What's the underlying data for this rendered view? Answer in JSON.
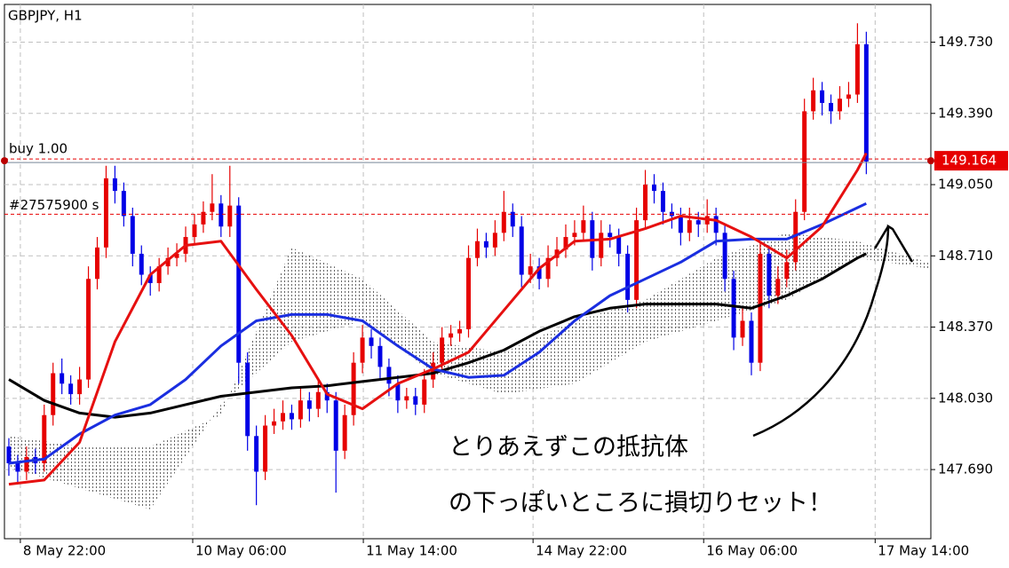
{
  "chart_data": {
    "type": "candlestick",
    "title": "GBPJPY, H1",
    "bull_color": "#e60000",
    "bear_color": "#0000e6",
    "grid": true,
    "xlim": [
      -0.5,
      104.3
    ],
    "ylim": [
      147.36,
      149.91
    ],
    "yticks": [
      {
        "value": 149.73,
        "label": "149.730"
      },
      {
        "value": 149.39,
        "label": "149.390"
      },
      {
        "value": 149.05,
        "label": "149.050"
      },
      {
        "value": 148.71,
        "label": "148.710"
      },
      {
        "value": 148.37,
        "label": "148.370"
      },
      {
        "value": 148.03,
        "label": "148.030"
      },
      {
        "value": 147.69,
        "label": "147.690"
      }
    ],
    "xticks": [
      {
        "value": 1.3,
        "label": "8 May 22:00"
      },
      {
        "value": 20.8,
        "label": "10 May 06:00"
      },
      {
        "value": 40.1,
        "label": "11 May 14:00"
      },
      {
        "value": 59.3,
        "label": "14 May 22:00"
      },
      {
        "value": 78.6,
        "label": "16 May 06:00"
      },
      {
        "value": 98,
        "label": "17 May 14:00"
      }
    ],
    "candles": [
      [
        147.8,
        147.84,
        147.66,
        147.72
      ],
      [
        147.72,
        147.76,
        147.62,
        147.68
      ],
      [
        147.68,
        147.8,
        147.64,
        147.75
      ],
      [
        147.75,
        147.79,
        147.67,
        147.72
      ],
      [
        147.72,
        148.0,
        147.68,
        147.95
      ],
      [
        147.95,
        148.2,
        147.9,
        148.15
      ],
      [
        148.15,
        148.22,
        148.05,
        148.1
      ],
      [
        148.1,
        148.14,
        148.0,
        148.05
      ],
      [
        148.05,
        148.18,
        148.0,
        148.12
      ],
      [
        148.12,
        148.66,
        148.08,
        148.6
      ],
      [
        148.6,
        148.8,
        148.55,
        148.75
      ],
      [
        148.75,
        149.14,
        148.7,
        149.08
      ],
      [
        149.08,
        149.14,
        148.96,
        149.02
      ],
      [
        149.02,
        149.06,
        148.85,
        148.9
      ],
      [
        148.9,
        148.94,
        148.66,
        148.72
      ],
      [
        148.72,
        148.76,
        148.57,
        148.62
      ],
      [
        148.62,
        148.66,
        148.52,
        148.58
      ],
      [
        148.58,
        148.7,
        148.54,
        148.66
      ],
      [
        148.66,
        148.75,
        148.62,
        148.7
      ],
      [
        148.7,
        148.77,
        148.66,
        148.72
      ],
      [
        148.72,
        148.85,
        148.68,
        148.8
      ],
      [
        148.8,
        148.91,
        148.76,
        148.86
      ],
      [
        148.86,
        148.97,
        148.82,
        148.92
      ],
      [
        148.92,
        149.1,
        148.88,
        148.96
      ],
      [
        148.96,
        149.0,
        148.8,
        148.85
      ],
      [
        148.85,
        149.14,
        148.8,
        148.95
      ],
      [
        148.95,
        148.99,
        148.1,
        148.2
      ],
      [
        148.2,
        148.25,
        147.78,
        147.85
      ],
      [
        147.85,
        147.9,
        147.52,
        147.68
      ],
      [
        147.68,
        147.95,
        147.64,
        147.9
      ],
      [
        147.9,
        147.98,
        147.86,
        147.92
      ],
      [
        147.92,
        148.02,
        147.88,
        147.96
      ],
      [
        147.96,
        148.0,
        147.88,
        147.93
      ],
      [
        147.93,
        148.08,
        147.89,
        148.02
      ],
      [
        148.02,
        148.06,
        147.92,
        147.98
      ],
      [
        147.98,
        148.12,
        147.94,
        148.06
      ],
      [
        148.06,
        148.1,
        147.96,
        148.02
      ],
      [
        148.02,
        148.06,
        147.58,
        147.78
      ],
      [
        147.78,
        148.0,
        147.74,
        147.95
      ],
      [
        147.95,
        148.25,
        147.9,
        148.2
      ],
      [
        148.2,
        148.38,
        148.15,
        148.32
      ],
      [
        148.32,
        148.36,
        148.22,
        148.28
      ],
      [
        148.28,
        148.32,
        148.12,
        148.18
      ],
      [
        148.18,
        148.22,
        148.04,
        148.1
      ],
      [
        148.1,
        148.14,
        147.96,
        148.02
      ],
      [
        148.02,
        148.08,
        147.98,
        148.04
      ],
      [
        148.04,
        148.08,
        147.95,
        148.0
      ],
      [
        148.0,
        148.17,
        147.96,
        148.12
      ],
      [
        148.12,
        148.25,
        148.08,
        148.2
      ],
      [
        148.2,
        148.37,
        148.16,
        148.32
      ],
      [
        148.32,
        148.38,
        148.28,
        148.34
      ],
      [
        148.34,
        148.4,
        148.3,
        148.36
      ],
      [
        148.36,
        148.76,
        148.32,
        148.7
      ],
      [
        148.7,
        148.84,
        148.66,
        148.78
      ],
      [
        148.78,
        148.82,
        148.7,
        148.75
      ],
      [
        148.75,
        148.88,
        148.71,
        148.82
      ],
      [
        148.82,
        149.02,
        148.78,
        148.92
      ],
      [
        148.92,
        148.96,
        148.8,
        148.85
      ],
      [
        148.85,
        148.9,
        148.56,
        148.62
      ],
      [
        148.62,
        148.72,
        148.58,
        148.66
      ],
      [
        148.66,
        148.7,
        148.55,
        148.6
      ],
      [
        148.6,
        148.76,
        148.56,
        148.7
      ],
      [
        148.7,
        148.8,
        148.66,
        148.74
      ],
      [
        148.74,
        148.86,
        148.7,
        148.8
      ],
      [
        148.8,
        148.88,
        148.76,
        148.82
      ],
      [
        148.82,
        148.95,
        148.78,
        148.88
      ],
      [
        148.88,
        148.92,
        148.64,
        148.7
      ],
      [
        148.7,
        148.88,
        148.66,
        148.82
      ],
      [
        148.82,
        148.86,
        148.75,
        148.8
      ],
      [
        148.8,
        148.84,
        148.66,
        148.72
      ],
      [
        148.72,
        148.76,
        148.44,
        148.5
      ],
      [
        148.5,
        148.94,
        148.46,
        148.88
      ],
      [
        148.88,
        149.12,
        148.84,
        149.05
      ],
      [
        149.05,
        149.1,
        148.96,
        149.02
      ],
      [
        149.02,
        149.06,
        148.86,
        148.92
      ],
      [
        148.92,
        148.96,
        148.84,
        148.9
      ],
      [
        148.9,
        148.94,
        148.76,
        148.82
      ],
      [
        148.82,
        148.94,
        148.78,
        148.88
      ],
      [
        148.88,
        148.92,
        148.8,
        148.86
      ],
      [
        148.86,
        148.98,
        148.82,
        148.9
      ],
      [
        148.9,
        148.94,
        148.76,
        148.82
      ],
      [
        148.82,
        148.86,
        148.54,
        148.6
      ],
      [
        148.6,
        148.64,
        148.26,
        148.32
      ],
      [
        148.32,
        148.46,
        148.28,
        148.4
      ],
      [
        148.4,
        148.44,
        148.14,
        148.2
      ],
      [
        148.2,
        148.78,
        148.16,
        148.72
      ],
      [
        148.72,
        148.76,
        148.46,
        148.52
      ],
      [
        148.52,
        148.66,
        148.48,
        148.6
      ],
      [
        148.6,
        148.74,
        148.56,
        148.68
      ],
      [
        148.68,
        148.98,
        148.64,
        148.92
      ],
      [
        148.92,
        149.46,
        148.88,
        149.4
      ],
      [
        149.4,
        149.56,
        149.36,
        149.5
      ],
      [
        149.5,
        149.54,
        149.38,
        149.44
      ],
      [
        149.44,
        149.48,
        149.34,
        149.4
      ],
      [
        149.4,
        149.52,
        149.36,
        149.46
      ],
      [
        149.46,
        149.54,
        149.42,
        149.48
      ],
      [
        149.48,
        149.82,
        149.44,
        149.72
      ],
      [
        149.72,
        149.78,
        149.1,
        149.16
      ]
    ],
    "cloud": {
      "color": "#e070d0",
      "x": [
        0,
        8,
        16,
        24,
        32,
        40,
        48,
        56,
        64,
        72,
        80,
        88,
        96,
        104
      ],
      "span_a": [
        147.85,
        147.8,
        147.8,
        147.95,
        148.75,
        148.6,
        148.3,
        148.25,
        148.4,
        148.5,
        148.7,
        148.82,
        148.78,
        148.68
      ],
      "span_b": [
        147.7,
        147.6,
        147.5,
        148.0,
        148.3,
        148.4,
        148.15,
        148.05,
        148.1,
        148.3,
        148.4,
        148.5,
        148.7,
        148.65
      ]
    },
    "ma_x": [
      0,
      4,
      8,
      12,
      16,
      20,
      24,
      28,
      32,
      36,
      40,
      44,
      48,
      52,
      56,
      60,
      64,
      68,
      72,
      76,
      80,
      84,
      88,
      92,
      96,
      97
    ],
    "indicators": [
      {
        "color": "#000000",
        "values": [
          148.12,
          148.02,
          147.96,
          147.94,
          147.96,
          148.0,
          148.04,
          148.06,
          148.08,
          148.09,
          148.11,
          148.13,
          148.15,
          148.2,
          148.26,
          148.35,
          148.42,
          148.46,
          148.48,
          148.48,
          148.48,
          148.46,
          148.52,
          148.6,
          148.7,
          148.72
        ]
      },
      {
        "color": "#1a2ee0",
        "values": [
          147.72,
          147.74,
          147.86,
          147.95,
          148.0,
          148.12,
          148.28,
          148.4,
          148.43,
          148.43,
          148.4,
          148.28,
          148.17,
          148.13,
          148.14,
          148.25,
          148.4,
          148.52,
          148.6,
          148.68,
          148.78,
          148.79,
          148.79,
          148.86,
          148.94,
          148.96
        ]
      },
      {
        "color": "#e61010",
        "values": [
          147.62,
          147.64,
          147.82,
          148.3,
          148.62,
          148.76,
          148.78,
          148.55,
          148.33,
          148.05,
          147.98,
          148.1,
          148.17,
          148.25,
          148.45,
          148.65,
          148.78,
          148.79,
          148.84,
          148.9,
          148.88,
          148.8,
          148.7,
          148.85,
          149.12,
          149.2
        ]
      }
    ],
    "position": {
      "label": "buy 1.00",
      "value": 149.164,
      "value_label": "149.164",
      "color": "#e60000"
    },
    "stop": {
      "label": "#27575900 s",
      "value": 148.909,
      "color": "#e60000"
    },
    "annotations": [
      "とりあえずこの抵抗体",
      "の下っぽいところに損切りセット！"
    ]
  }
}
